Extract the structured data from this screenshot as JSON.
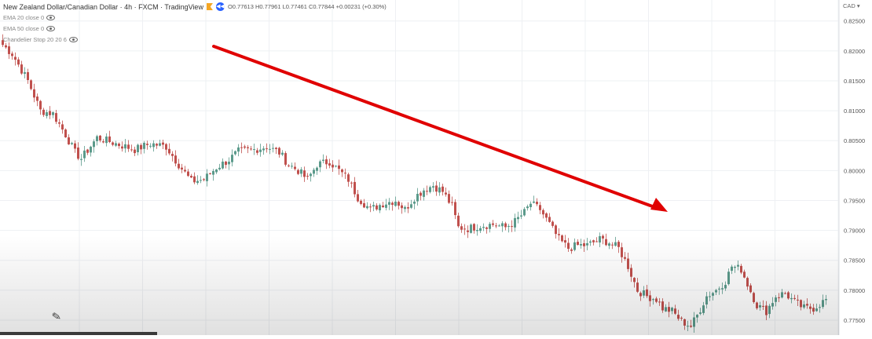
{
  "header": {
    "title": "New Zealand Dollar/Canadian Dollar · 4h · FXCM · TradingView",
    "ohlc": "O0.77613 H0.77961 L0.77461 C0.77844 +0.00231 (+0.30%)"
  },
  "indicators": [
    {
      "label": "EMA 20 close 0"
    },
    {
      "label": "EMA 50 close 0"
    },
    {
      "label": "Chandelier Stop 20 20 6"
    }
  ],
  "currency_label": "CAD",
  "colors": {
    "up": "#5b9a8b",
    "down": "#c0504d",
    "arrow": "#e00000",
    "grid": "#eef0f3",
    "axis_text": "#555555"
  },
  "chart_data": {
    "type": "candlestick",
    "symbol": "NZDCAD",
    "timeframe": "4h",
    "ylim": [
      0.7725,
      0.8285
    ],
    "y_ticks": [
      "0.82500",
      "0.82000",
      "0.81500",
      "0.81000",
      "0.80500",
      "0.80000",
      "0.79500",
      "0.79000",
      "0.78500",
      "0.78000",
      "0.77500"
    ],
    "grid": true,
    "annotation": {
      "type": "arrow",
      "color": "red",
      "direction": "down",
      "from": [
        0.82
      ],
      "to": [
        0.7965
      ]
    },
    "close_anchors": [
      [
        0,
        0.821
      ],
      [
        3,
        0.8195
      ],
      [
        8,
        0.815
      ],
      [
        12,
        0.81
      ],
      [
        16,
        0.8095
      ],
      [
        20,
        0.806
      ],
      [
        23,
        0.803
      ],
      [
        25,
        0.802
      ],
      [
        30,
        0.8055
      ],
      [
        36,
        0.8045
      ],
      [
        42,
        0.8035
      ],
      [
        47,
        0.8045
      ],
      [
        52,
        0.804
      ],
      [
        56,
        0.801
      ],
      [
        60,
        0.7982
      ],
      [
        64,
        0.7985
      ],
      [
        68,
        0.8005
      ],
      [
        72,
        0.8018
      ],
      [
        75,
        0.8032
      ],
      [
        80,
        0.8035
      ],
      [
        84,
        0.804
      ],
      [
        88,
        0.803
      ],
      [
        91,
        0.801
      ],
      [
        94,
        0.8
      ],
      [
        97,
        0.7985
      ],
      [
        100,
        0.801
      ],
      [
        104,
        0.8015
      ],
      [
        107,
        0.8
      ],
      [
        110,
        0.7985
      ],
      [
        113,
        0.7955
      ],
      [
        117,
        0.7935
      ],
      [
        121,
        0.7945
      ],
      [
        125,
        0.795
      ],
      [
        128,
        0.7935
      ],
      [
        131,
        0.7955
      ],
      [
        134,
        0.7968
      ],
      [
        137,
        0.7975
      ],
      [
        140,
        0.7965
      ],
      [
        143,
        0.794
      ],
      [
        145,
        0.7905
      ],
      [
        148,
        0.7903
      ],
      [
        152,
        0.7908
      ],
      [
        156,
        0.791
      ],
      [
        160,
        0.7905
      ],
      [
        163,
        0.7915
      ],
      [
        166,
        0.793
      ],
      [
        168,
        0.7945
      ],
      [
        171,
        0.7935
      ],
      [
        174,
        0.791
      ],
      [
        177,
        0.7885
      ],
      [
        180,
        0.787
      ],
      [
        183,
        0.7875
      ],
      [
        186,
        0.7875
      ],
      [
        190,
        0.7885
      ],
      [
        193,
        0.788
      ],
      [
        196,
        0.787
      ],
      [
        199,
        0.784
      ],
      [
        202,
        0.78
      ],
      [
        205,
        0.779
      ],
      [
        208,
        0.7785
      ],
      [
        210,
        0.777
      ],
      [
        213,
        0.7765
      ],
      [
        216,
        0.7748
      ],
      [
        219,
        0.774
      ],
      [
        221,
        0.7758
      ],
      [
        224,
        0.779
      ],
      [
        227,
        0.78
      ],
      [
        230,
        0.7815
      ],
      [
        232,
        0.784
      ],
      [
        235,
        0.7835
      ],
      [
        237,
        0.781
      ],
      [
        240,
        0.7775
      ],
      [
        243,
        0.7765
      ],
      [
        246,
        0.779
      ],
      [
        249,
        0.7795
      ],
      [
        252,
        0.778
      ],
      [
        255,
        0.777
      ],
      [
        258,
        0.777
      ],
      [
        262,
        0.7784
      ]
    ]
  }
}
